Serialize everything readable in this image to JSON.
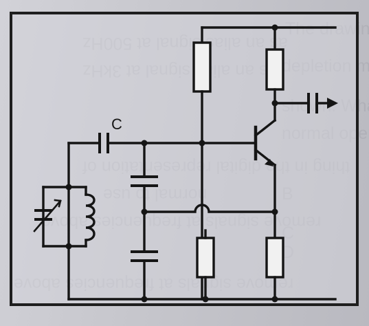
{
  "diagram": {
    "capacitor_label": "C"
  },
  "background_text": {
    "right_top": "The drawing shows a",
    "right_2": "depletion mode",
    "right_3": "shown. What voltage",
    "right_4": "normal operation?",
    "right_5": "B",
    "right_6": "C",
    "right_7": "D",
    "mirror_1": "as an alias signal at 500Hz",
    "mirror_2": "as an alias signal at 3kHz",
    "mirror_3": "thing in the digital representation of",
    "mirror_4": "normal to use",
    "mirror_5": "remove signals at frequencies above",
    "mirror_6": "remove signals at frequencies above"
  }
}
